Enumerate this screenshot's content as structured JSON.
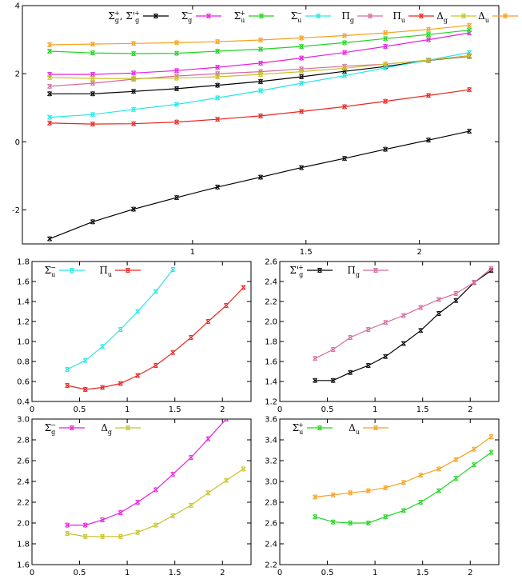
{
  "colors": {
    "black": "#000000",
    "magenta": "#e81fe0",
    "green": "#1fd41f",
    "cyan": "#25e6e6",
    "pink": "#d66a9e",
    "red": "#e8261f",
    "olive": "#c9c22a",
    "orange": "#f5a01e"
  },
  "chart_data": [
    {
      "type": "line",
      "title": "",
      "xlabel": "",
      "ylabel": "",
      "xlim": [
        0.25,
        2.35
      ],
      "ylim": [
        -3,
        4
      ],
      "xticks": [
        "1",
        "1.5",
        "2"
      ],
      "xtick_values": [
        1,
        1.5,
        2
      ],
      "yticks": [
        "4",
        "2",
        "0",
        "-2"
      ],
      "ytick_values": [
        4,
        2,
        0,
        -2
      ],
      "legend_position": "top",
      "legend": [
        "Σ_g^+, Σ'_g^+",
        "Σ_g^−",
        "Σ_u^+",
        "Σ_u^−",
        "Π_g",
        "Π_u",
        "Δ_g",
        "Δ_u"
      ],
      "x": [
        0.37,
        0.56,
        0.74,
        0.93,
        1.11,
        1.3,
        1.48,
        1.67,
        1.85,
        2.04,
        2.22
      ],
      "series": [
        {
          "color": "black",
          "values": [
            -2.85,
            -2.35,
            -1.98,
            -1.64,
            -1.33,
            -1.04,
            -0.76,
            -0.49,
            -0.22,
            0.05,
            0.31
          ]
        },
        {
          "color": "black",
          "values": [
            1.41,
            1.41,
            1.48,
            1.56,
            1.66,
            1.77,
            1.91,
            2.07,
            2.21,
            2.39,
            2.51
          ]
        },
        {
          "color": "magenta",
          "values": [
            1.98,
            1.98,
            2.02,
            2.09,
            2.19,
            2.31,
            2.46,
            2.62,
            2.8,
            3.0,
            3.2
          ]
        },
        {
          "color": "green",
          "values": [
            2.66,
            2.61,
            2.59,
            2.6,
            2.66,
            2.72,
            2.8,
            2.91,
            3.03,
            3.15,
            3.28
          ]
        },
        {
          "color": "cyan",
          "values": [
            0.72,
            0.8,
            0.95,
            1.1,
            1.29,
            1.5,
            1.72,
            1.94,
            2.17,
            2.4,
            2.62
          ]
        },
        {
          "color": "pink",
          "values": [
            1.63,
            1.72,
            1.84,
            1.93,
            2.0,
            2.06,
            2.14,
            2.22,
            2.28,
            2.4,
            2.53
          ]
        },
        {
          "color": "red",
          "values": [
            0.55,
            0.52,
            0.53,
            0.58,
            0.66,
            0.76,
            0.89,
            1.03,
            1.19,
            1.36,
            1.53
          ]
        },
        {
          "color": "olive",
          "values": [
            1.89,
            1.86,
            1.86,
            1.87,
            1.91,
            1.98,
            2.06,
            2.16,
            2.28,
            2.4,
            2.52
          ]
        },
        {
          "color": "orange",
          "values": [
            2.85,
            2.87,
            2.89,
            2.91,
            2.94,
            2.99,
            3.05,
            3.12,
            3.2,
            3.3,
            3.42
          ]
        }
      ]
    },
    {
      "type": "line",
      "title": "",
      "xlim": [
        0,
        2.3
      ],
      "ylim": [
        0.4,
        1.8
      ],
      "xticks": [
        "0",
        "0.5",
        "1",
        "1.5",
        "2"
      ],
      "xtick_values": [
        0,
        0.5,
        1,
        1.5,
        2
      ],
      "yticks": [
        "1.8",
        "1.6",
        "1.4",
        "1.2",
        "1.0",
        "0.8",
        "0.6",
        "0.4"
      ],
      "ytick_values": [
        1.8,
        1.6,
        1.4,
        1.2,
        1.0,
        0.8,
        0.6,
        0.4
      ],
      "legend_position": "top-left",
      "legend": [
        "Σ_u^−",
        "Π_u"
      ],
      "x": [
        0.37,
        0.56,
        0.74,
        0.93,
        1.11,
        1.3,
        1.48,
        1.67,
        1.85,
        2.04,
        2.22
      ],
      "series": [
        {
          "color": "cyan",
          "values": [
            0.72,
            0.81,
            0.95,
            1.12,
            1.3,
            1.5,
            1.72,
            null,
            null,
            null,
            null
          ]
        },
        {
          "color": "red",
          "values": [
            0.56,
            0.52,
            0.54,
            0.58,
            0.66,
            0.76,
            0.89,
            1.04,
            1.2,
            1.36,
            1.54
          ]
        }
      ]
    },
    {
      "type": "line",
      "title": "",
      "xlim": [
        0,
        2.3
      ],
      "ylim": [
        1.2,
        2.6
      ],
      "xticks": [
        "0",
        "0.5",
        "1",
        "1.5",
        "2"
      ],
      "xtick_values": [
        0,
        0.5,
        1,
        1.5,
        2
      ],
      "yticks": [
        "2.6",
        "2.4",
        "2.2",
        "2.0",
        "1.8",
        "1.6",
        "1.4",
        "1.2"
      ],
      "ytick_values": [
        2.6,
        2.4,
        2.2,
        2.0,
        1.8,
        1.6,
        1.4,
        1.2
      ],
      "legend_position": "top-left",
      "legend": [
        "Σ'_g^+",
        "Π_g"
      ],
      "x": [
        0.37,
        0.56,
        0.74,
        0.93,
        1.11,
        1.3,
        1.48,
        1.67,
        1.85,
        2.04,
        2.22
      ],
      "series": [
        {
          "color": "black",
          "values": [
            1.41,
            1.41,
            1.49,
            1.56,
            1.65,
            1.78,
            1.91,
            2.08,
            2.21,
            2.39,
            2.51
          ]
        },
        {
          "color": "pink",
          "values": [
            1.63,
            1.72,
            1.84,
            1.92,
            1.99,
            2.06,
            2.14,
            2.22,
            2.28,
            2.39,
            2.53
          ]
        }
      ]
    },
    {
      "type": "line",
      "title": "",
      "xlim": [
        0,
        2.3
      ],
      "ylim": [
        1.6,
        3.0
      ],
      "xticks": [
        "0",
        "0.5",
        "1",
        "1.5",
        "2"
      ],
      "xtick_values": [
        0,
        0.5,
        1,
        1.5,
        2
      ],
      "yticks": [
        "3.0",
        "2.8",
        "2.6",
        "2.4",
        "2.2",
        "2.0",
        "1.8",
        "1.6"
      ],
      "ytick_values": [
        3.0,
        2.8,
        2.6,
        2.4,
        2.2,
        2.0,
        1.8,
        1.6
      ],
      "legend_position": "top-left",
      "legend": [
        "Σ_g^−",
        "Δ_g"
      ],
      "x": [
        0.37,
        0.56,
        0.74,
        0.93,
        1.11,
        1.3,
        1.48,
        1.67,
        1.85,
        2.04,
        2.22
      ],
      "series": [
        {
          "color": "magenta",
          "values": [
            1.98,
            1.98,
            2.03,
            2.1,
            2.2,
            2.32,
            2.47,
            2.63,
            2.81,
            3.0,
            null
          ]
        },
        {
          "color": "olive",
          "values": [
            1.9,
            1.87,
            1.87,
            1.87,
            1.91,
            1.98,
            2.07,
            2.17,
            2.29,
            2.41,
            2.52
          ]
        }
      ]
    },
    {
      "type": "line",
      "title": "",
      "xlim": [
        0,
        2.3
      ],
      "ylim": [
        2.2,
        3.6
      ],
      "xticks": [
        "0",
        "0.5",
        "1",
        "1.5",
        "2"
      ],
      "xtick_values": [
        0,
        0.5,
        1,
        1.5,
        2
      ],
      "yticks": [
        "3.6",
        "3.4",
        "3.2",
        "3.0",
        "2.8",
        "2.6",
        "2.4",
        "2.2"
      ],
      "ytick_values": [
        3.6,
        3.4,
        3.2,
        3.0,
        2.8,
        2.6,
        2.4,
        2.2
      ],
      "legend_position": "top-left",
      "legend": [
        "Σ_u^+",
        "Δ_u"
      ],
      "x": [
        0.37,
        0.56,
        0.74,
        0.93,
        1.11,
        1.3,
        1.48,
        1.67,
        1.85,
        2.04,
        2.22
      ],
      "series": [
        {
          "color": "green",
          "values": [
            2.66,
            2.61,
            2.6,
            2.6,
            2.66,
            2.72,
            2.8,
            2.91,
            3.03,
            3.16,
            3.28
          ]
        },
        {
          "color": "orange",
          "values": [
            2.85,
            2.87,
            2.89,
            2.91,
            2.94,
            2.99,
            3.06,
            3.12,
            3.21,
            3.31,
            3.43
          ]
        }
      ]
    }
  ]
}
